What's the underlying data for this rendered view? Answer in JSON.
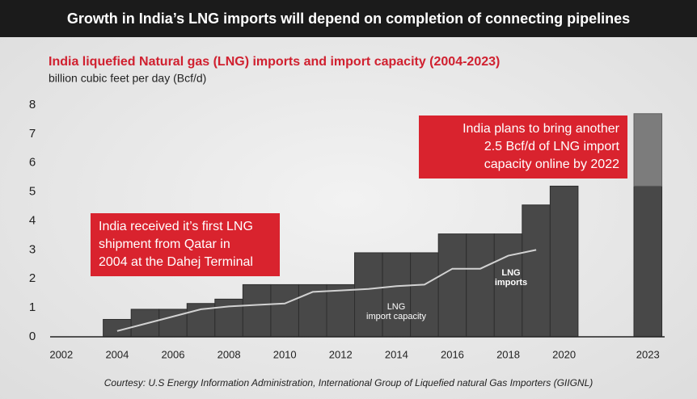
{
  "chart_data": {
    "type": "bar",
    "title": "Growth in India’s LNG imports will depend on completion of connecting pipelines",
    "subtitle": "India liquefied Natural gas (LNG) imports and import capacity (2004-2023)",
    "y_label": "billion cubic feet per day (Bcf/d)",
    "source": "Courtesy: U.S Energy Information Administration, International Group of Liquefied natural Gas Importers (GIIGNL)",
    "xlim": [
      2001.6,
      2023.6
    ],
    "xticks": [
      2002,
      2004,
      2006,
      2008,
      2010,
      2012,
      2014,
      2016,
      2018,
      2020,
      2023
    ],
    "ylim": [
      0,
      8
    ],
    "yticks": [
      0,
      1,
      2,
      3,
      4,
      5,
      6,
      7,
      8
    ],
    "series": [
      {
        "name": "LNG import capacity",
        "type": "bar",
        "color": "#484848",
        "x": [
          2004,
          2005,
          2006,
          2007,
          2008,
          2009,
          2010,
          2011,
          2012,
          2013,
          2014,
          2015,
          2016,
          2017,
          2018,
          2019,
          2020,
          2023
        ],
        "values": [
          0.6,
          0.95,
          0.95,
          1.15,
          1.3,
          1.8,
          1.8,
          1.8,
          1.8,
          2.9,
          2.9,
          2.9,
          3.55,
          3.55,
          3.55,
          4.55,
          5.2,
          5.2
        ]
      },
      {
        "name": "LNG imports",
        "type": "line",
        "color": "#d2d2d2",
        "x": [
          2004,
          2005,
          2006,
          2007,
          2008,
          2009,
          2010,
          2011,
          2012,
          2013,
          2014,
          2015,
          2016,
          2017,
          2018,
          2019
        ],
        "values": [
          0.2,
          0.45,
          0.7,
          0.95,
          1.05,
          1.1,
          1.15,
          1.55,
          1.6,
          1.65,
          1.75,
          1.8,
          2.35,
          2.35,
          2.8,
          3.0
        ]
      }
    ],
    "planned": {
      "x": 2023,
      "value": 2.5,
      "color": "#7c7c7c"
    },
    "annotations": [
      {
        "lines": [
          "India received it’s first LNG",
          "shipment from Qatar in",
          "2004 at the Dahej Terminal"
        ],
        "color": "#d9232e"
      },
      {
        "lines": [
          "India plans to bring another",
          "2.5 Bcf/d of LNG import",
          "capacity online by 2022"
        ],
        "color": "#d9232e"
      }
    ]
  }
}
